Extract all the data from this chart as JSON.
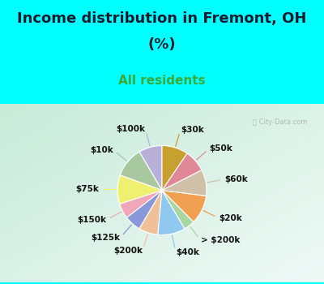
{
  "title_line1": "Income distribution in Fremont, OH",
  "title_line2": "(%)",
  "subtitle": "All residents",
  "bg_top": "#00FFFF",
  "watermark": "City-Data.com",
  "labels": [
    "$100k",
    "$10k",
    "$75k",
    "$150k",
    "$125k",
    "$200k",
    "$40k",
    "> $200k",
    "$20k",
    "$60k",
    "$50k",
    "$30k"
  ],
  "values": [
    8.5,
    11.0,
    10.5,
    5.5,
    6.0,
    7.0,
    10.0,
    4.0,
    10.5,
    9.5,
    8.0,
    9.5
  ],
  "colors": [
    "#b8b0d8",
    "#a8c8a0",
    "#f0f070",
    "#f0a8b8",
    "#8898d8",
    "#f0c098",
    "#90c8f0",
    "#a8d8a0",
    "#f0a050",
    "#d0c0a8",
    "#e08898",
    "#c8a030"
  ],
  "title_fontsize": 13,
  "subtitle_fontsize": 11,
  "title_color": "#1a1a2e",
  "subtitle_color": "#3aaa3a",
  "label_fontsize": 7.5
}
